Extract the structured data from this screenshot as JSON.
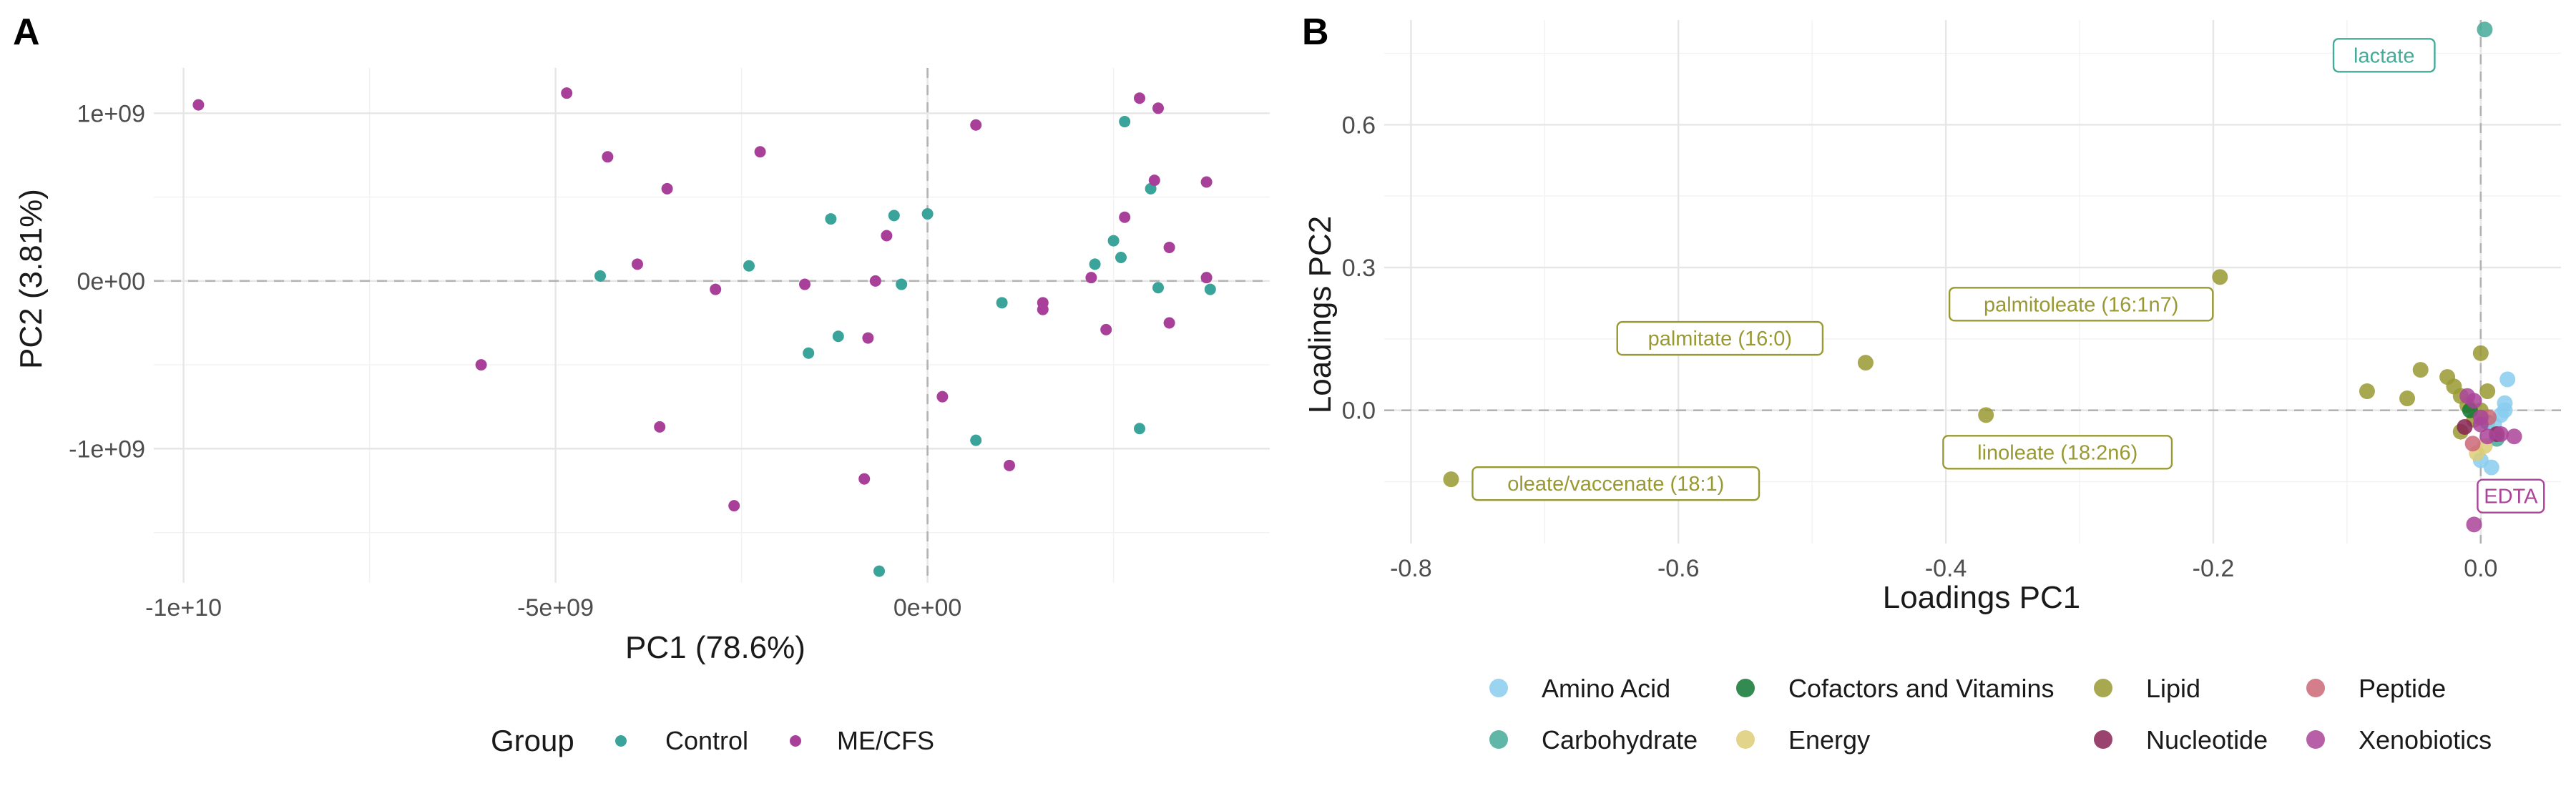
{
  "panels": {
    "a": {
      "letter": "A"
    },
    "b": {
      "letter": "B"
    }
  },
  "colors": {
    "Control": "#3aa39a",
    "ME/CFS": "#a8409a",
    "Amino Acid": "#88ccee",
    "Carbohydrate": "#44aa99",
    "Cofactors and Vitamins": "#117733",
    "Energy": "#ddcc77",
    "Lipid": "#999933",
    "Nucleotide": "#882255",
    "Peptide": "#cc6677",
    "Xenobiotics": "#aa4499"
  },
  "chart_data": [
    {
      "type": "scatter",
      "panel": "A",
      "xlabel": "PC1 (78.6%)",
      "ylabel": "PC2 (3.81%)",
      "xlim": [
        -10400000000,
        4600000000
      ],
      "ylim": [
        -1800000000,
        1270000000
      ],
      "x_ticks": [
        {
          "value": -10000000000,
          "label": "-1e+10"
        },
        {
          "value": -5000000000,
          "label": "-5e+09"
        },
        {
          "value": 0,
          "label": "0e+00"
        }
      ],
      "y_ticks": [
        {
          "value": 1000000000,
          "label": "1e+09"
        },
        {
          "value": 0,
          "label": "0e+00"
        },
        {
          "value": -1000000000,
          "label": "-1e+09"
        }
      ],
      "legend": {
        "title": "Group",
        "position": "bottom",
        "entries": [
          "Control",
          "ME/CFS"
        ]
      },
      "series": [
        {
          "name": "Control",
          "points": [
            [
              2650000000,
              950000000
            ],
            [
              3000000000,
              550000000
            ],
            [
              -1300000000,
              370000000
            ],
            [
              -450000000,
              390000000
            ],
            [
              0,
              400000000
            ],
            [
              -2400000000,
              90000000
            ],
            [
              -4400000000,
              30000000
            ],
            [
              2250000000,
              100000000
            ],
            [
              2500000000,
              240000000
            ],
            [
              2600000000,
              140000000
            ],
            [
              1000000000,
              -130000000
            ],
            [
              3100000000,
              -40000000
            ],
            [
              3800000000,
              -50000000
            ],
            [
              -350000000,
              -20000000
            ],
            [
              -1200000000,
              -330000000
            ],
            [
              -1600000000,
              -430000000
            ],
            [
              650000000,
              -950000000
            ],
            [
              2850000000,
              -880000000
            ],
            [
              -650000000,
              -1730000000
            ]
          ]
        },
        {
          "name": "ME/CFS",
          "points": [
            [
              -9800000000,
              1050000000
            ],
            [
              -4850000000,
              1120000000
            ],
            [
              -4300000000,
              740000000
            ],
            [
              -3500000000,
              550000000
            ],
            [
              -2250000000,
              770000000
            ],
            [
              650000000,
              930000000
            ],
            [
              2850000000,
              1090000000
            ],
            [
              3100000000,
              1030000000
            ],
            [
              3050000000,
              600000000
            ],
            [
              3750000000,
              590000000
            ],
            [
              2650000000,
              380000000
            ],
            [
              -550000000,
              270000000
            ],
            [
              3250000000,
              200000000
            ],
            [
              -3900000000,
              100000000
            ],
            [
              -2850000000,
              -50000000
            ],
            [
              -1650000000,
              -20000000
            ],
            [
              -700000000,
              0
            ],
            [
              1550000000,
              -130000000
            ],
            [
              1550000000,
              -170000000
            ],
            [
              3750000000,
              20000000
            ],
            [
              2200000000,
              20000000
            ],
            [
              3250000000,
              -250000000
            ],
            [
              2400000000,
              -290000000
            ],
            [
              -800000000,
              -340000000
            ],
            [
              -6000000000,
              -500000000
            ],
            [
              200000000,
              -690000000
            ],
            [
              1100000000,
              -1100000000
            ],
            [
              -850000000,
              -1180000000
            ],
            [
              -2600000000,
              -1340000000
            ],
            [
              -3600000000,
              -870000000
            ]
          ]
        }
      ]
    },
    {
      "type": "scatter",
      "panel": "B",
      "xlabel": "Loadings PC1",
      "ylabel": "Loadings PC2",
      "xlim": [
        -0.82,
        0.06
      ],
      "ylim": [
        -0.28,
        0.82
      ],
      "x_ticks": [
        {
          "value": -0.8,
          "label": "-0.8"
        },
        {
          "value": -0.6,
          "label": "-0.6"
        },
        {
          "value": -0.4,
          "label": "-0.4"
        },
        {
          "value": -0.2,
          "label": "-0.2"
        },
        {
          "value": 0,
          "label": "0.0"
        }
      ],
      "y_ticks": [
        {
          "value": 0.6,
          "label": "0.6"
        },
        {
          "value": 0.3,
          "label": "0.3"
        },
        {
          "value": 0,
          "label": "0.0"
        }
      ],
      "legend": {
        "position": "bottom",
        "entries": [
          "Amino Acid",
          "Carbohydrate",
          "Cofactors and Vitamins",
          "Energy",
          "Lipid",
          "Nucleotide",
          "Peptide",
          "Xenobiotics"
        ]
      },
      "series": [
        {
          "name": "Lipid",
          "points": [
            [
              -0.77,
              -0.145
            ],
            [
              -0.46,
              0.1
            ],
            [
              -0.37,
              -0.01
            ],
            [
              -0.195,
              0.28
            ],
            [
              -0.085,
              0.04
            ],
            [
              -0.055,
              0.025
            ],
            [
              -0.045,
              0.085
            ],
            [
              -0.025,
              0.07
            ],
            [
              -0.02,
              0.05
            ],
            [
              -0.015,
              0.03
            ],
            [
              -0.01,
              0.01
            ],
            [
              -0.005,
              -0.02
            ],
            [
              0.0,
              0.12
            ],
            [
              0.005,
              0.04
            ],
            [
              -0.015,
              -0.045
            ],
            [
              0.0,
              0.0
            ]
          ]
        },
        {
          "name": "Carbohydrate",
          "points": [
            [
              0.003,
              0.8
            ],
            [
              0.012,
              -0.06
            ],
            [
              0.005,
              -0.025
            ]
          ]
        },
        {
          "name": "Amino Acid",
          "points": [
            [
              0.02,
              0.065
            ],
            [
              0.018,
              0.015
            ],
            [
              0.015,
              -0.01
            ],
            [
              0.01,
              -0.03
            ],
            [
              0.008,
              -0.12
            ],
            [
              0.0,
              -0.105
            ],
            [
              0.018,
              0.0
            ]
          ]
        },
        {
          "name": "Energy",
          "points": [
            [
              -0.003,
              -0.09
            ],
            [
              0.003,
              -0.075
            ]
          ]
        },
        {
          "name": "Cofactors and Vitamins",
          "points": [
            [
              -0.008,
              0.0
            ]
          ]
        },
        {
          "name": "Nucleotide",
          "points": [
            [
              -0.012,
              -0.035
            ],
            [
              0.012,
              -0.05
            ]
          ]
        },
        {
          "name": "Peptide",
          "points": [
            [
              0.006,
              -0.015
            ],
            [
              -0.006,
              -0.07
            ]
          ]
        },
        {
          "name": "Xenobiotics",
          "points": [
            [
              -0.01,
              0.03
            ],
            [
              0.0,
              -0.015
            ],
            [
              0.005,
              -0.055
            ],
            [
              0.015,
              -0.05
            ],
            [
              0.025,
              -0.055
            ],
            [
              0.0,
              -0.03
            ],
            [
              -0.005,
              -0.24
            ],
            [
              -0.005,
              0.02
            ]
          ]
        }
      ],
      "annotations": [
        {
          "label": "lactate",
          "x": 0.003,
          "y": 0.8,
          "group": "Carbohydrate"
        },
        {
          "label": "palmitoleate (16:1n7)",
          "x": -0.195,
          "y": 0.28,
          "group": "Lipid"
        },
        {
          "label": "palmitate (16:0)",
          "x": -0.46,
          "y": 0.1,
          "group": "Lipid"
        },
        {
          "label": "linoleate (18:2n6)",
          "x": -0.37,
          "y": -0.01,
          "group": "Lipid"
        },
        {
          "label": "oleate/vaccenate (18:1)",
          "x": -0.77,
          "y": -0.145,
          "group": "Lipid"
        },
        {
          "label": "EDTA",
          "x": 0.0,
          "y": -0.015,
          "group": "Xenobiotics"
        }
      ]
    }
  ]
}
